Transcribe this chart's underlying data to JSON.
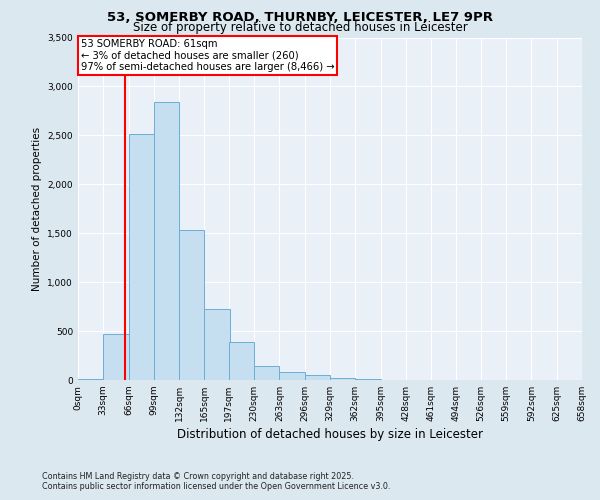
{
  "title1": "53, SOMERBY ROAD, THURNBY, LEICESTER, LE7 9PR",
  "title2": "Size of property relative to detached houses in Leicester",
  "xlabel": "Distribution of detached houses by size in Leicester",
  "ylabel": "Number of detached properties",
  "annotation_line1": "53 SOMERBY ROAD: 61sqm",
  "annotation_line2": "← 3% of detached houses are smaller (260)",
  "annotation_line3": "97% of semi-detached houses are larger (8,466) →",
  "footer1": "Contains HM Land Registry data © Crown copyright and database right 2025.",
  "footer2": "Contains public sector information licensed under the Open Government Licence v3.0.",
  "bar_left_edges": [
    0,
    33,
    66,
    99,
    132,
    165,
    197,
    230,
    263,
    296,
    329,
    362,
    395,
    428,
    461,
    494,
    526,
    559,
    592,
    625
  ],
  "bar_heights": [
    10,
    470,
    2510,
    2840,
    1530,
    730,
    390,
    145,
    85,
    55,
    25,
    10,
    5,
    5,
    2,
    1,
    1,
    0,
    0,
    0
  ],
  "bin_width": 33,
  "bar_color": "#c5dff0",
  "bar_edge_color": "#6aaed6",
  "red_line_x": 61,
  "ylim": [
    0,
    3500
  ],
  "yticks": [
    0,
    500,
    1000,
    1500,
    2000,
    2500,
    3000,
    3500
  ],
  "bg_color": "#eaf0f8",
  "fig_bg_color": "#dce8f0",
  "grid_color": "#ffffff",
  "tick_labels": [
    "0sqm",
    "33sqm",
    "66sqm",
    "99sqm",
    "132sqm",
    "165sqm",
    "197sqm",
    "230sqm",
    "263sqm",
    "296sqm",
    "329sqm",
    "362sqm",
    "395sqm",
    "428sqm",
    "461sqm",
    "494sqm",
    "526sqm",
    "559sqm",
    "592sqm",
    "625sqm",
    "658sqm"
  ]
}
